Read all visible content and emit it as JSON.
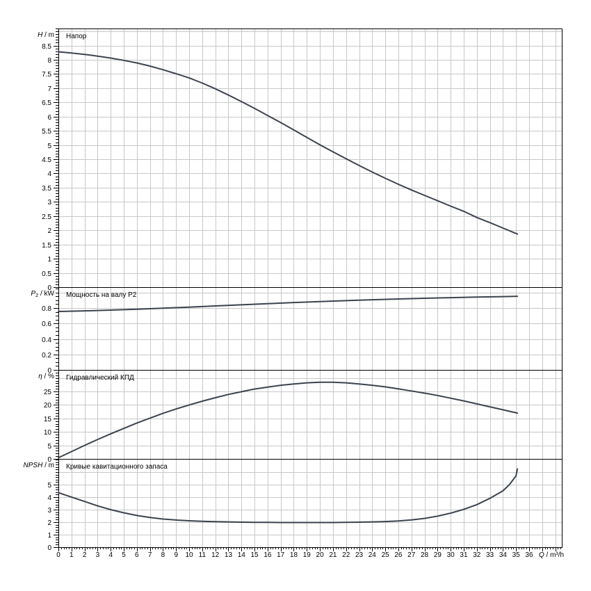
{
  "style": {
    "background": "#ffffff",
    "curve_color": "#3a434e",
    "grid_color": "#c8c8c8",
    "axis_color": "#000000",
    "text_color": "#000000"
  },
  "x_axis": {
    "sym": "Q",
    "unit": " / m³/h",
    "label": "Q / m³/h",
    "min": 0,
    "max": 38.5,
    "grid_step": 1,
    "minor_tick_step": 0.2,
    "tick_labels": [
      "0",
      "1",
      "2",
      "3",
      "4",
      "5",
      "6",
      "7",
      "8",
      "9",
      "10",
      "11",
      "12",
      "13",
      "14",
      "15",
      "16",
      "17",
      "18",
      "19",
      "20",
      "21",
      "22",
      "23",
      "24",
      "25",
      "26",
      "27",
      "28",
      "29",
      "30",
      "31",
      "32",
      "33",
      "34",
      "35",
      "36"
    ]
  },
  "chart_data": [
    {
      "type": "line",
      "title": "Напор",
      "y_axis": {
        "sym": "H",
        "sub": "",
        "unit": " / m",
        "label": "H / m",
        "min": 0,
        "max": 9.1,
        "grid_step": 0.5,
        "minor_tick_step": 0.1,
        "tick_labels": [
          "0",
          "0.5",
          "1",
          "1.5",
          "2",
          "2.5",
          "3",
          "3.5",
          "4",
          "4.5",
          "5",
          "5.5",
          "6",
          "6.5",
          "7",
          "7.5",
          "8",
          "8.5"
        ]
      },
      "series": [
        {
          "name": "head-curve",
          "points": [
            [
              0,
              8.28
            ],
            [
              1,
              8.24
            ],
            [
              2,
              8.19
            ],
            [
              3,
              8.13
            ],
            [
              4,
              8.06
            ],
            [
              5,
              7.98
            ],
            [
              6,
              7.89
            ],
            [
              7,
              7.78
            ],
            [
              8,
              7.65
            ],
            [
              9,
              7.51
            ],
            [
              10,
              7.36
            ],
            [
              11,
              7.18
            ],
            [
              12,
              6.98
            ],
            [
              13,
              6.76
            ],
            [
              14,
              6.53
            ],
            [
              15,
              6.29
            ],
            [
              16,
              6.04
            ],
            [
              17,
              5.79
            ],
            [
              18,
              5.53
            ],
            [
              19,
              5.27
            ],
            [
              20,
              5.01
            ],
            [
              21,
              4.76
            ],
            [
              22,
              4.52
            ],
            [
              23,
              4.28
            ],
            [
              24,
              4.05
            ],
            [
              25,
              3.83
            ],
            [
              26,
              3.62
            ],
            [
              27,
              3.42
            ],
            [
              28,
              3.23
            ],
            [
              29,
              3.04
            ],
            [
              30,
              2.85
            ],
            [
              31,
              2.67
            ],
            [
              32,
              2.45
            ],
            [
              33,
              2.27
            ],
            [
              34,
              2.08
            ],
            [
              35.1,
              1.87
            ]
          ]
        }
      ]
    },
    {
      "type": "line",
      "title": "Мощность на валу P2",
      "y_axis": {
        "sym": "P",
        "sub": "2",
        "unit": " / kW",
        "label": "P2 / kW",
        "min": 0,
        "max": 1.07,
        "grid_step": 0.2,
        "minor_tick_step": 0.05,
        "tick_labels": [
          "0",
          "0.2",
          "0.4",
          "0.6",
          "0.8"
        ]
      },
      "series": [
        {
          "name": "power-curve",
          "points": [
            [
              0,
              0.755
            ],
            [
              2,
              0.763
            ],
            [
              4,
              0.773
            ],
            [
              6,
              0.785
            ],
            [
              8,
              0.798
            ],
            [
              10,
              0.812
            ],
            [
              12,
              0.827
            ],
            [
              14,
              0.842
            ],
            [
              16,
              0.857
            ],
            [
              18,
              0.871
            ],
            [
              20,
              0.884
            ],
            [
              22,
              0.896
            ],
            [
              24,
              0.907
            ],
            [
              26,
              0.917
            ],
            [
              28,
              0.926
            ],
            [
              30,
              0.934
            ],
            [
              32,
              0.941
            ],
            [
              34,
              0.948
            ],
            [
              35.1,
              0.952
            ]
          ]
        }
      ]
    },
    {
      "type": "line",
      "title": "Гидравлический КПД",
      "y_axis": {
        "sym": "η",
        "sub": "",
        "unit": " / %",
        "label": "η / %",
        "min": 0,
        "max": 33,
        "grid_step": 5,
        "minor_tick_step": 1,
        "tick_labels": [
          "0",
          "5",
          "10",
          "15",
          "20",
          "25"
        ]
      },
      "series": [
        {
          "name": "efficiency-curve",
          "points": [
            [
              0,
              0.4
            ],
            [
              1,
              2.7
            ],
            [
              2,
              5.0
            ],
            [
              3,
              7.2
            ],
            [
              4,
              9.3
            ],
            [
              5,
              11.3
            ],
            [
              6,
              13.3
            ],
            [
              7,
              15.1
            ],
            [
              8,
              16.9
            ],
            [
              9,
              18.5
            ],
            [
              10,
              20.0
            ],
            [
              11,
              21.4
            ],
            [
              12,
              22.7
            ],
            [
              13,
              23.9
            ],
            [
              14,
              24.9
            ],
            [
              15,
              25.9
            ],
            [
              16,
              26.6
            ],
            [
              17,
              27.3
            ],
            [
              18,
              27.8
            ],
            [
              19,
              28.2
            ],
            [
              20,
              28.4
            ],
            [
              21,
              28.4
            ],
            [
              22,
              28.2
            ],
            [
              23,
              27.8
            ],
            [
              24,
              27.3
            ],
            [
              25,
              26.7
            ],
            [
              26,
              26.0
            ],
            [
              27,
              25.2
            ],
            [
              28,
              24.4
            ],
            [
              29,
              23.5
            ],
            [
              30,
              22.5
            ],
            [
              31,
              21.5
            ],
            [
              32,
              20.4
            ],
            [
              33,
              19.3
            ],
            [
              34,
              18.2
            ],
            [
              35.1,
              17.0
            ]
          ]
        }
      ]
    },
    {
      "type": "line",
      "title": "Кривые кавитационного запаса",
      "y_axis": {
        "sym": "NPSH",
        "sub": "",
        "unit": " / m",
        "label": "NPSH / m",
        "min": 0,
        "max": 7.05,
        "grid_step": 1,
        "minor_tick_step": 0.2,
        "tick_labels": [
          "0",
          "1",
          "2",
          "3",
          "4",
          "5"
        ]
      },
      "series": [
        {
          "name": "npsh-curve",
          "points": [
            [
              0,
              4.35
            ],
            [
              1,
              4.0
            ],
            [
              2,
              3.65
            ],
            [
              3,
              3.3
            ],
            [
              4,
              3.0
            ],
            [
              5,
              2.75
            ],
            [
              6,
              2.53
            ],
            [
              7,
              2.37
            ],
            [
              8,
              2.25
            ],
            [
              9,
              2.17
            ],
            [
              10,
              2.11
            ],
            [
              11,
              2.07
            ],
            [
              12,
              2.04
            ],
            [
              13,
              2.02
            ],
            [
              14,
              2.0
            ],
            [
              15,
              1.99
            ],
            [
              16,
              1.98
            ],
            [
              17,
              1.97
            ],
            [
              18,
              1.97
            ],
            [
              19,
              1.97
            ],
            [
              20,
              1.97
            ],
            [
              21,
              1.97
            ],
            [
              22,
              1.98
            ],
            [
              23,
              2.0
            ],
            [
              24,
              2.02
            ],
            [
              25,
              2.05
            ],
            [
              26,
              2.1
            ],
            [
              27,
              2.18
            ],
            [
              28,
              2.3
            ],
            [
              29,
              2.48
            ],
            [
              30,
              2.72
            ],
            [
              31,
              3.02
            ],
            [
              32,
              3.4
            ],
            [
              33,
              3.9
            ],
            [
              34,
              4.5
            ],
            [
              34.5,
              5.0
            ],
            [
              35,
              5.7
            ],
            [
              35.1,
              6.25
            ]
          ]
        }
      ]
    }
  ]
}
